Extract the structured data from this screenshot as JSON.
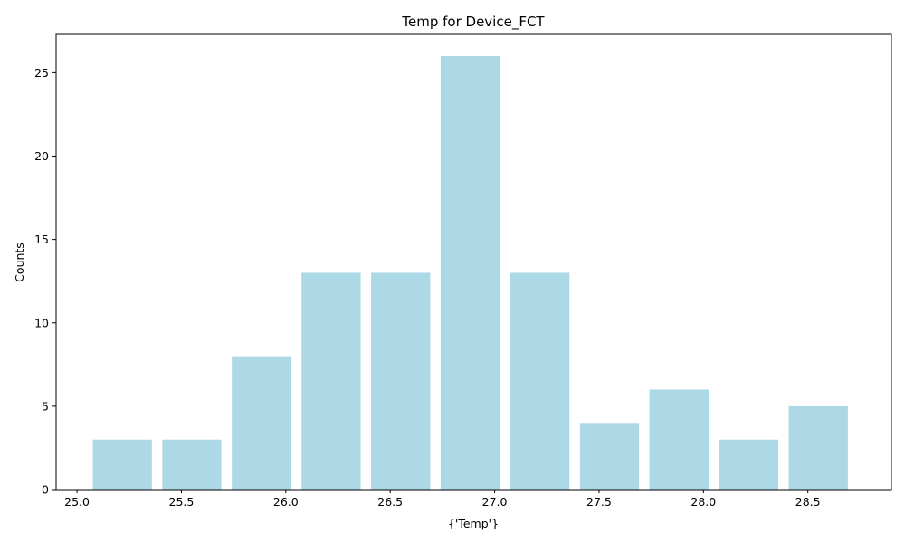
{
  "chart_data": {
    "type": "bar",
    "title": "Temp for Device_FCT",
    "xlabel": "{'Temp'}",
    "ylabel": "Counts",
    "bin_width": 0.333,
    "bar_fraction": 0.85,
    "bins": [
      {
        "x": 25.217,
        "count": 3
      },
      {
        "x": 25.55,
        "count": 3
      },
      {
        "x": 25.883,
        "count": 8
      },
      {
        "x": 26.217,
        "count": 13
      },
      {
        "x": 26.55,
        "count": 13
      },
      {
        "x": 26.883,
        "count": 26
      },
      {
        "x": 27.217,
        "count": 13
      },
      {
        "x": 27.55,
        "count": 4
      },
      {
        "x": 27.883,
        "count": 6
      },
      {
        "x": 28.217,
        "count": 3
      },
      {
        "x": 28.55,
        "count": 5
      }
    ],
    "xlim": [
      24.9,
      28.9
    ],
    "ylim": [
      0,
      27.3
    ],
    "xticks": [
      25.0,
      25.5,
      26.0,
      26.5,
      27.0,
      27.5,
      28.0,
      28.5
    ],
    "xtick_labels": [
      "25.0",
      "25.5",
      "26.0",
      "26.5",
      "27.0",
      "27.5",
      "28.0",
      "28.5"
    ],
    "yticks": [
      0,
      5,
      10,
      15,
      20,
      25
    ],
    "ytick_labels": [
      "0",
      "5",
      "10",
      "15",
      "20",
      "25"
    ],
    "bar_color": "#add8e6",
    "grid": false,
    "legend": "none"
  }
}
